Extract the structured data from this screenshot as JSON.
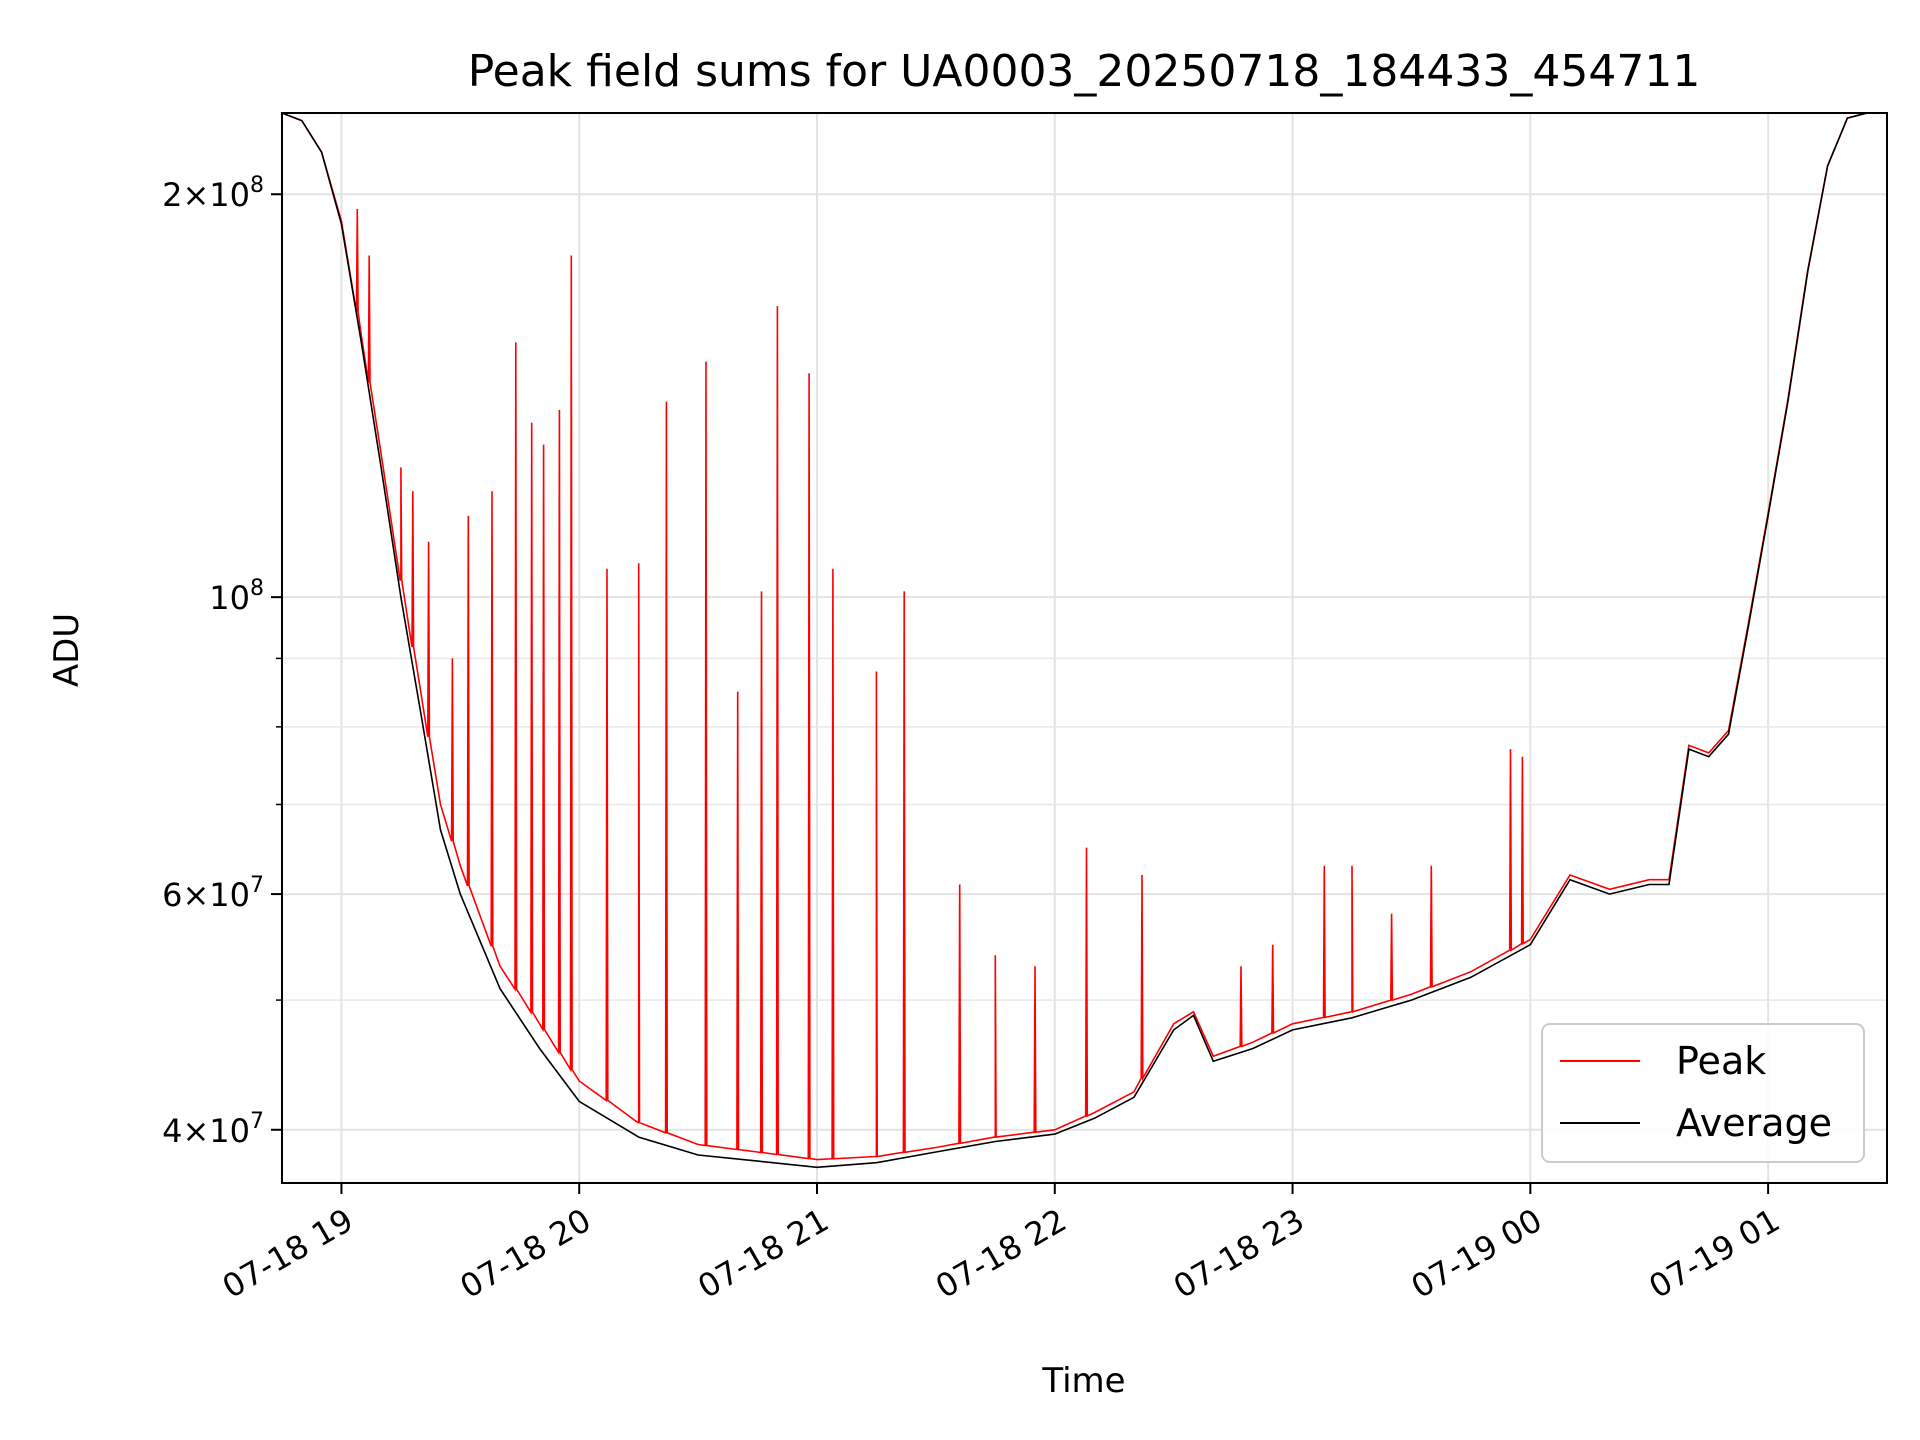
{
  "chart_data": {
    "type": "line",
    "title": "Peak field sums for UA0003_20250718_184433_454711",
    "xlabel": "Time",
    "ylabel": "ADU",
    "yscale": "log",
    "ylim": [
      36500000,
      230000000
    ],
    "xlim": [
      "2025-07-18 18:45",
      "2025-07-19 01:30"
    ],
    "grid": true,
    "legend_position": "lower right",
    "x_ticks": [
      "2025-07-18 19:00",
      "2025-07-18 20:00",
      "2025-07-18 21:00",
      "2025-07-18 22:00",
      "2025-07-18 23:00",
      "2025-07-19 00:00",
      "2025-07-19 01:00"
    ],
    "x_tick_labels": [
      "07-18 19",
      "07-18 20",
      "07-18 21",
      "07-18 22",
      "07-18 23",
      "07-19 00",
      "07-19 01"
    ],
    "y_major_ticks": [
      {
        "value": 40000000,
        "mantissa": "4",
        "exp": "7"
      },
      {
        "value": 60000000,
        "mantissa": "6",
        "exp": "7"
      },
      {
        "value": 100000000,
        "mantissa": "",
        "exp": "8"
      },
      {
        "value": 200000000,
        "mantissa": "2",
        "exp": "8"
      }
    ],
    "y_minor_ticks": [
      50000000,
      70000000,
      80000000,
      90000000
    ],
    "colors": {
      "Peak": "#ff0000",
      "Average": "#000000"
    },
    "series": [
      {
        "name": "Average",
        "x": [
          "2025-07-18 18:45",
          "2025-07-18 18:50",
          "2025-07-18 18:55",
          "2025-07-18 19:00",
          "2025-07-18 19:05",
          "2025-07-18 19:10",
          "2025-07-18 19:15",
          "2025-07-18 19:20",
          "2025-07-18 19:25",
          "2025-07-18 19:30",
          "2025-07-18 19:40",
          "2025-07-18 19:50",
          "2025-07-18 20:00",
          "2025-07-18 20:15",
          "2025-07-18 20:30",
          "2025-07-18 20:45",
          "2025-07-18 21:00",
          "2025-07-18 21:15",
          "2025-07-18 21:30",
          "2025-07-18 21:45",
          "2025-07-18 22:00",
          "2025-07-18 22:10",
          "2025-07-18 22:20",
          "2025-07-18 22:30",
          "2025-07-18 22:35",
          "2025-07-18 22:40",
          "2025-07-18 22:50",
          "2025-07-18 23:00",
          "2025-07-18 23:15",
          "2025-07-18 23:30",
          "2025-07-18 23:45",
          "2025-07-19 00:00",
          "2025-07-19 00:10",
          "2025-07-19 00:20",
          "2025-07-19 00:30",
          "2025-07-19 00:35",
          "2025-07-19 00:40",
          "2025-07-19 00:45",
          "2025-07-19 00:50",
          "2025-07-19 00:55",
          "2025-07-19 01:00",
          "2025-07-19 01:05",
          "2025-07-19 01:10",
          "2025-07-19 01:15",
          "2025-07-19 01:20",
          "2025-07-19 01:25",
          "2025-07-19 01:30"
        ],
        "values": [
          230000000,
          227000000,
          215000000,
          190000000,
          155000000,
          125000000,
          100000000,
          82000000,
          67000000,
          60000000,
          51000000,
          46000000,
          42000000,
          39500000,
          38300000,
          37900000,
          37500000,
          37800000,
          38500000,
          39200000,
          39700000,
          40800000,
          42300000,
          47500000,
          48700000,
          45000000,
          46000000,
          47500000,
          48500000,
          50000000,
          52000000,
          55000000,
          61500000,
          60000000,
          61000000,
          61000000,
          77000000,
          76000000,
          79000000,
          95000000,
          115000000,
          140000000,
          175000000,
          210000000,
          228000000,
          230000000,
          230000000
        ]
      },
      {
        "name": "Peak",
        "x": [
          "2025-07-18 18:45",
          "2025-07-18 18:50",
          "2025-07-18 18:55",
          "2025-07-18 19:00",
          "2025-07-18 19:05",
          "2025-07-18 19:10",
          "2025-07-18 19:15",
          "2025-07-18 19:20",
          "2025-07-18 19:25",
          "2025-07-18 19:30",
          "2025-07-18 19:40",
          "2025-07-18 19:50",
          "2025-07-18 20:00",
          "2025-07-18 20:15",
          "2025-07-18 20:30",
          "2025-07-18 20:45",
          "2025-07-18 21:00",
          "2025-07-18 21:15",
          "2025-07-18 21:30",
          "2025-07-18 21:45",
          "2025-07-18 22:00",
          "2025-07-18 22:10",
          "2025-07-18 22:20",
          "2025-07-18 22:30",
          "2025-07-18 22:35",
          "2025-07-18 22:40",
          "2025-07-18 22:50",
          "2025-07-18 23:00",
          "2025-07-18 23:15",
          "2025-07-18 23:30",
          "2025-07-18 23:45",
          "2025-07-19 00:00",
          "2025-07-19 00:10",
          "2025-07-19 00:20",
          "2025-07-19 00:30",
          "2025-07-19 00:35",
          "2025-07-19 00:40",
          "2025-07-19 00:45",
          "2025-07-19 00:50",
          "2025-07-19 00:55",
          "2025-07-19 01:00",
          "2025-07-19 01:05",
          "2025-07-19 01:10",
          "2025-07-19 01:15",
          "2025-07-19 01:20",
          "2025-07-19 01:25",
          "2025-07-19 01:30"
        ],
        "values": [
          230000000,
          227000000,
          215000000,
          191000000,
          157000000,
          128000000,
          103000000,
          85000000,
          70000000,
          63000000,
          53000000,
          48000000,
          43500000,
          40500000,
          39000000,
          38500000,
          38000000,
          38200000,
          38800000,
          39500000,
          40000000,
          41200000,
          42700000,
          48000000,
          49000000,
          45400000,
          46500000,
          48000000,
          49000000,
          50500000,
          52500000,
          55500000,
          62000000,
          60500000,
          61500000,
          61500000,
          77500000,
          76500000,
          79500000,
          95500000,
          115500000,
          140500000,
          175500000,
          210000000,
          228000000,
          230000000,
          230000000
        ],
        "spikes": [
          {
            "x": "2025-07-18 19:04",
            "value": 195000000
          },
          {
            "x": "2025-07-18 19:07",
            "value": 180000000
          },
          {
            "x": "2025-07-18 19:15",
            "value": 125000000
          },
          {
            "x": "2025-07-18 19:18",
            "value": 120000000
          },
          {
            "x": "2025-07-18 19:22",
            "value": 110000000
          },
          {
            "x": "2025-07-18 19:28",
            "value": 90000000
          },
          {
            "x": "2025-07-18 19:32",
            "value": 115000000
          },
          {
            "x": "2025-07-18 19:38",
            "value": 120000000
          },
          {
            "x": "2025-07-18 19:44",
            "value": 155000000
          },
          {
            "x": "2025-07-18 19:48",
            "value": 135000000
          },
          {
            "x": "2025-07-18 19:51",
            "value": 130000000
          },
          {
            "x": "2025-07-18 19:55",
            "value": 138000000
          },
          {
            "x": "2025-07-18 19:58",
            "value": 180000000
          },
          {
            "x": "2025-07-18 20:07",
            "value": 105000000
          },
          {
            "x": "2025-07-18 20:15",
            "value": 106000000
          },
          {
            "x": "2025-07-18 20:22",
            "value": 140000000
          },
          {
            "x": "2025-07-18 20:32",
            "value": 150000000
          },
          {
            "x": "2025-07-18 20:40",
            "value": 85000000
          },
          {
            "x": "2025-07-18 20:46",
            "value": 101000000
          },
          {
            "x": "2025-07-18 20:50",
            "value": 165000000
          },
          {
            "x": "2025-07-18 20:58",
            "value": 147000000
          },
          {
            "x": "2025-07-18 21:04",
            "value": 105000000
          },
          {
            "x": "2025-07-18 21:15",
            "value": 88000000
          },
          {
            "x": "2025-07-18 21:22",
            "value": 101000000
          },
          {
            "x": "2025-07-18 21:36",
            "value": 61000000
          },
          {
            "x": "2025-07-18 21:45",
            "value": 54000000
          },
          {
            "x": "2025-07-18 21:55",
            "value": 53000000
          },
          {
            "x": "2025-07-18 22:08",
            "value": 65000000
          },
          {
            "x": "2025-07-18 22:22",
            "value": 62000000
          },
          {
            "x": "2025-07-18 22:47",
            "value": 53000000
          },
          {
            "x": "2025-07-18 22:55",
            "value": 55000000
          },
          {
            "x": "2025-07-18 23:08",
            "value": 63000000
          },
          {
            "x": "2025-07-18 23:15",
            "value": 63000000
          },
          {
            "x": "2025-07-18 23:25",
            "value": 58000000
          },
          {
            "x": "2025-07-18 23:35",
            "value": 63000000
          },
          {
            "x": "2025-07-18 23:55",
            "value": 77000000
          },
          {
            "x": "2025-07-18 23:58",
            "value": 76000000
          }
        ]
      }
    ]
  }
}
